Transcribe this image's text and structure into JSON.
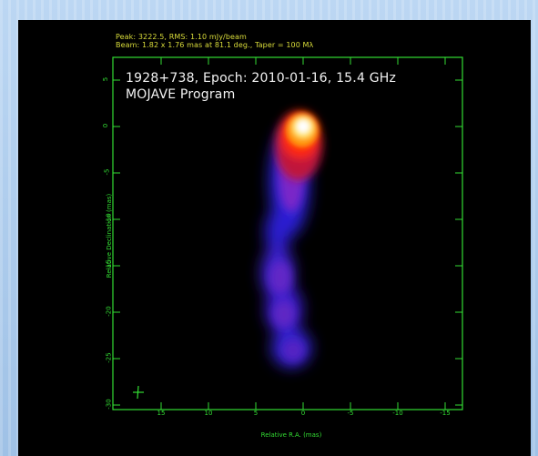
{
  "header": {
    "line1": "Peak: 3222.5, RMS: 1.10 mJy/beam",
    "line2": "Beam: 1.82 x 1.76 mas at 81.1 deg., Taper = 100 Mλ"
  },
  "title": {
    "line1": "1928+738, Epoch: 2010-01-16, 15.4 GHz",
    "line2": "MOJAVE Program"
  },
  "axes": {
    "xlabel": "Relative R.A. (mas)",
    "ylabel": "Relative Declination (mas)",
    "x_ticks": [
      "15",
      "10",
      "5",
      "0",
      "-5",
      "-10",
      "-15"
    ],
    "y_ticks": [
      "5",
      "0",
      "-5",
      "-10",
      "-15",
      "-20",
      "-25",
      "-30"
    ]
  },
  "colors": {
    "axis": "#33dd33",
    "header_text": "#d9dc3a",
    "title_text": "#f2f2f2",
    "background": "#000000"
  }
}
